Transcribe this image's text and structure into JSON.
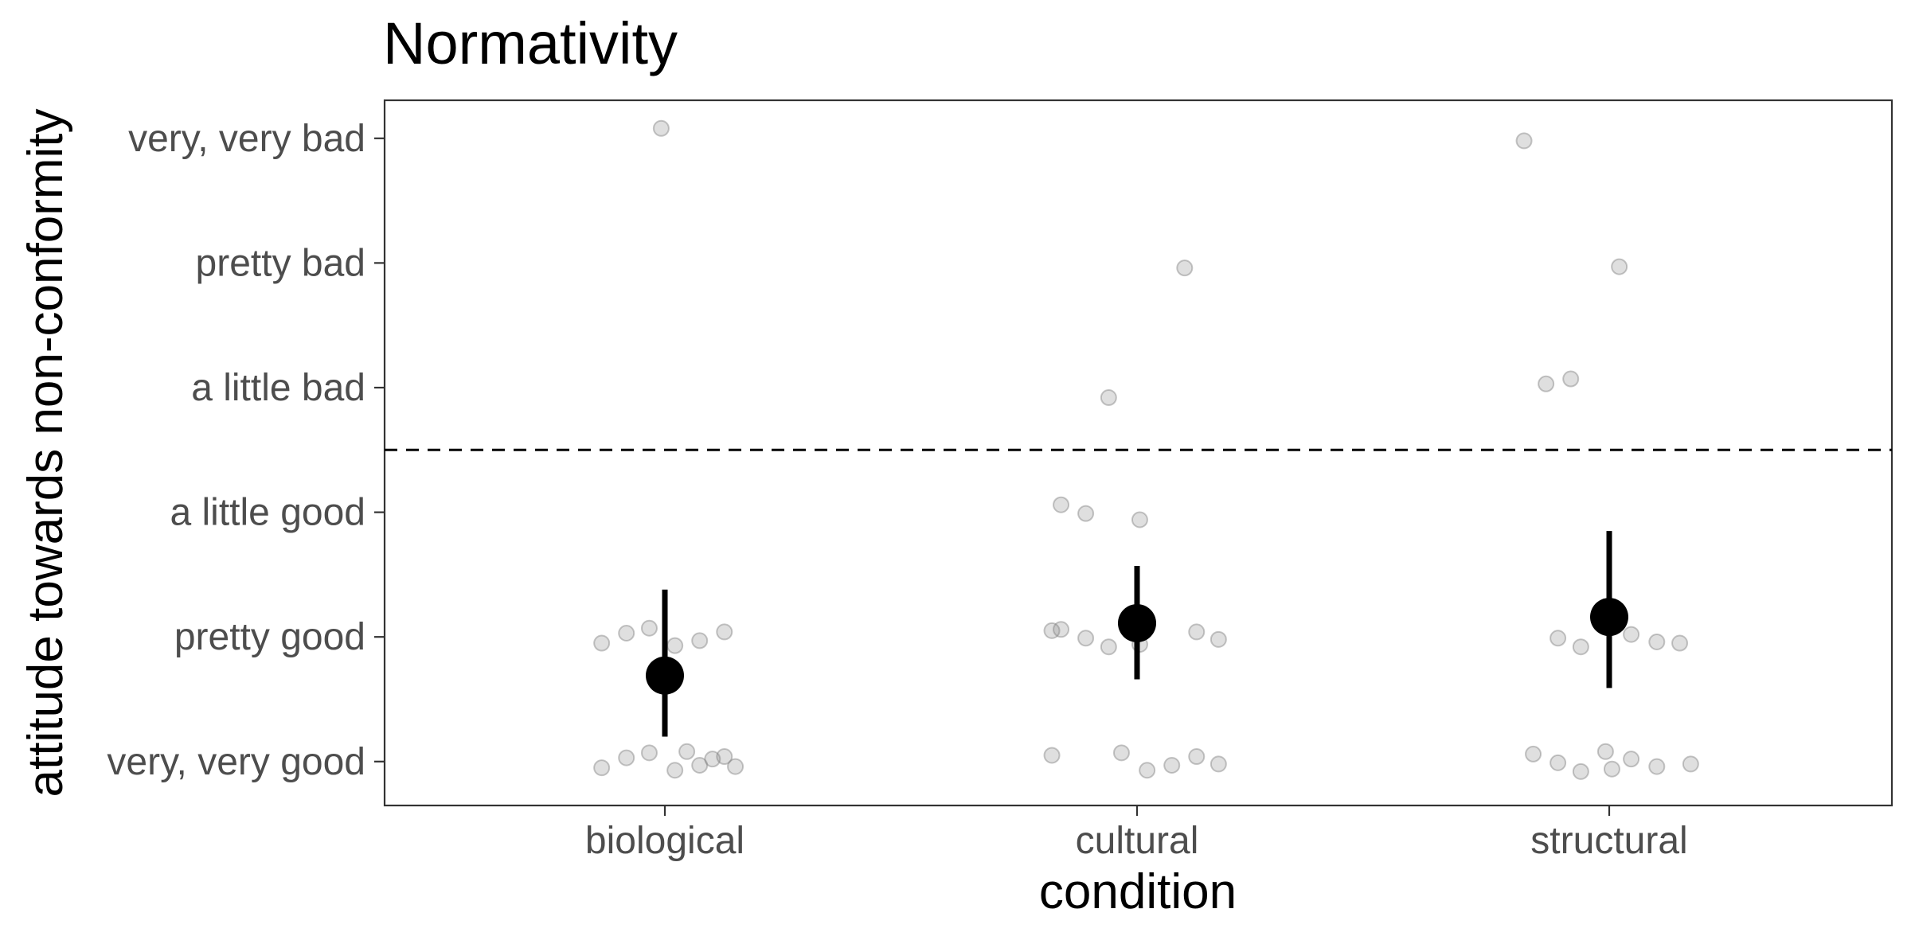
{
  "chart_data": {
    "type": "scatter",
    "title": "Normativity",
    "xlabel": "condition",
    "ylabel": "attitude towards non-conformity",
    "categories": [
      "biological",
      "cultural",
      "structural"
    ],
    "y_levels": [
      "very, very good",
      "pretty good",
      "a little good",
      "a little bad",
      "pretty bad",
      "very, very bad"
    ],
    "y_values": [
      1,
      2,
      3,
      4,
      5,
      6
    ],
    "ylim": [
      0.65,
      6.32
    ],
    "reference_line": {
      "y": 3.5,
      "style": "dashed"
    },
    "summary": [
      {
        "category": "biological",
        "mean": 1.69,
        "ci_low": 1.2,
        "ci_high": 2.38
      },
      {
        "category": "cultural",
        "mean": 2.11,
        "ci_low": 1.66,
        "ci_high": 2.57
      },
      {
        "category": "structural",
        "mean": 2.16,
        "ci_low": 1.59,
        "ci_high": 2.85
      }
    ],
    "points": [
      {
        "category": "biological",
        "y": 6
      },
      {
        "category": "biological",
        "y": 2
      },
      {
        "category": "biological",
        "y": 2
      },
      {
        "category": "biological",
        "y": 2
      },
      {
        "category": "biological",
        "y": 2
      },
      {
        "category": "biological",
        "y": 2
      },
      {
        "category": "biological",
        "y": 2
      },
      {
        "category": "biological",
        "y": 1
      },
      {
        "category": "biological",
        "y": 1
      },
      {
        "category": "biological",
        "y": 1
      },
      {
        "category": "biological",
        "y": 1
      },
      {
        "category": "biological",
        "y": 1
      },
      {
        "category": "biological",
        "y": 1
      },
      {
        "category": "biological",
        "y": 1
      },
      {
        "category": "biological",
        "y": 1
      },
      {
        "category": "biological",
        "y": 1
      },
      {
        "category": "cultural",
        "y": 5
      },
      {
        "category": "cultural",
        "y": 4
      },
      {
        "category": "cultural",
        "y": 3
      },
      {
        "category": "cultural",
        "y": 3
      },
      {
        "category": "cultural",
        "y": 3
      },
      {
        "category": "cultural",
        "y": 2
      },
      {
        "category": "cultural",
        "y": 2
      },
      {
        "category": "cultural",
        "y": 2
      },
      {
        "category": "cultural",
        "y": 2
      },
      {
        "category": "cultural",
        "y": 2
      },
      {
        "category": "cultural",
        "y": 2
      },
      {
        "category": "cultural",
        "y": 2
      },
      {
        "category": "cultural",
        "y": 2
      },
      {
        "category": "cultural",
        "y": 1
      },
      {
        "category": "cultural",
        "y": 1
      },
      {
        "category": "cultural",
        "y": 1
      },
      {
        "category": "cultural",
        "y": 1
      },
      {
        "category": "cultural",
        "y": 1
      },
      {
        "category": "cultural",
        "y": 1
      },
      {
        "category": "structural",
        "y": 6
      },
      {
        "category": "structural",
        "y": 5
      },
      {
        "category": "structural",
        "y": 4
      },
      {
        "category": "structural",
        "y": 4
      },
      {
        "category": "structural",
        "y": 2
      },
      {
        "category": "structural",
        "y": 2
      },
      {
        "category": "structural",
        "y": 2
      },
      {
        "category": "structural",
        "y": 2
      },
      {
        "category": "structural",
        "y": 2
      },
      {
        "category": "structural",
        "y": 2
      },
      {
        "category": "structural",
        "y": 1
      },
      {
        "category": "structural",
        "y": 1
      },
      {
        "category": "structural",
        "y": 1
      },
      {
        "category": "structural",
        "y": 1
      },
      {
        "category": "structural",
        "y": 1
      },
      {
        "category": "structural",
        "y": 1
      },
      {
        "category": "structural",
        "y": 1
      },
      {
        "category": "structural",
        "y": 1
      }
    ],
    "grid": false,
    "legend": "none",
    "colors": {
      "points": "#808080",
      "summary": "#000000",
      "panel_border": "#333333",
      "tick_label": "#4d4d4d"
    }
  }
}
